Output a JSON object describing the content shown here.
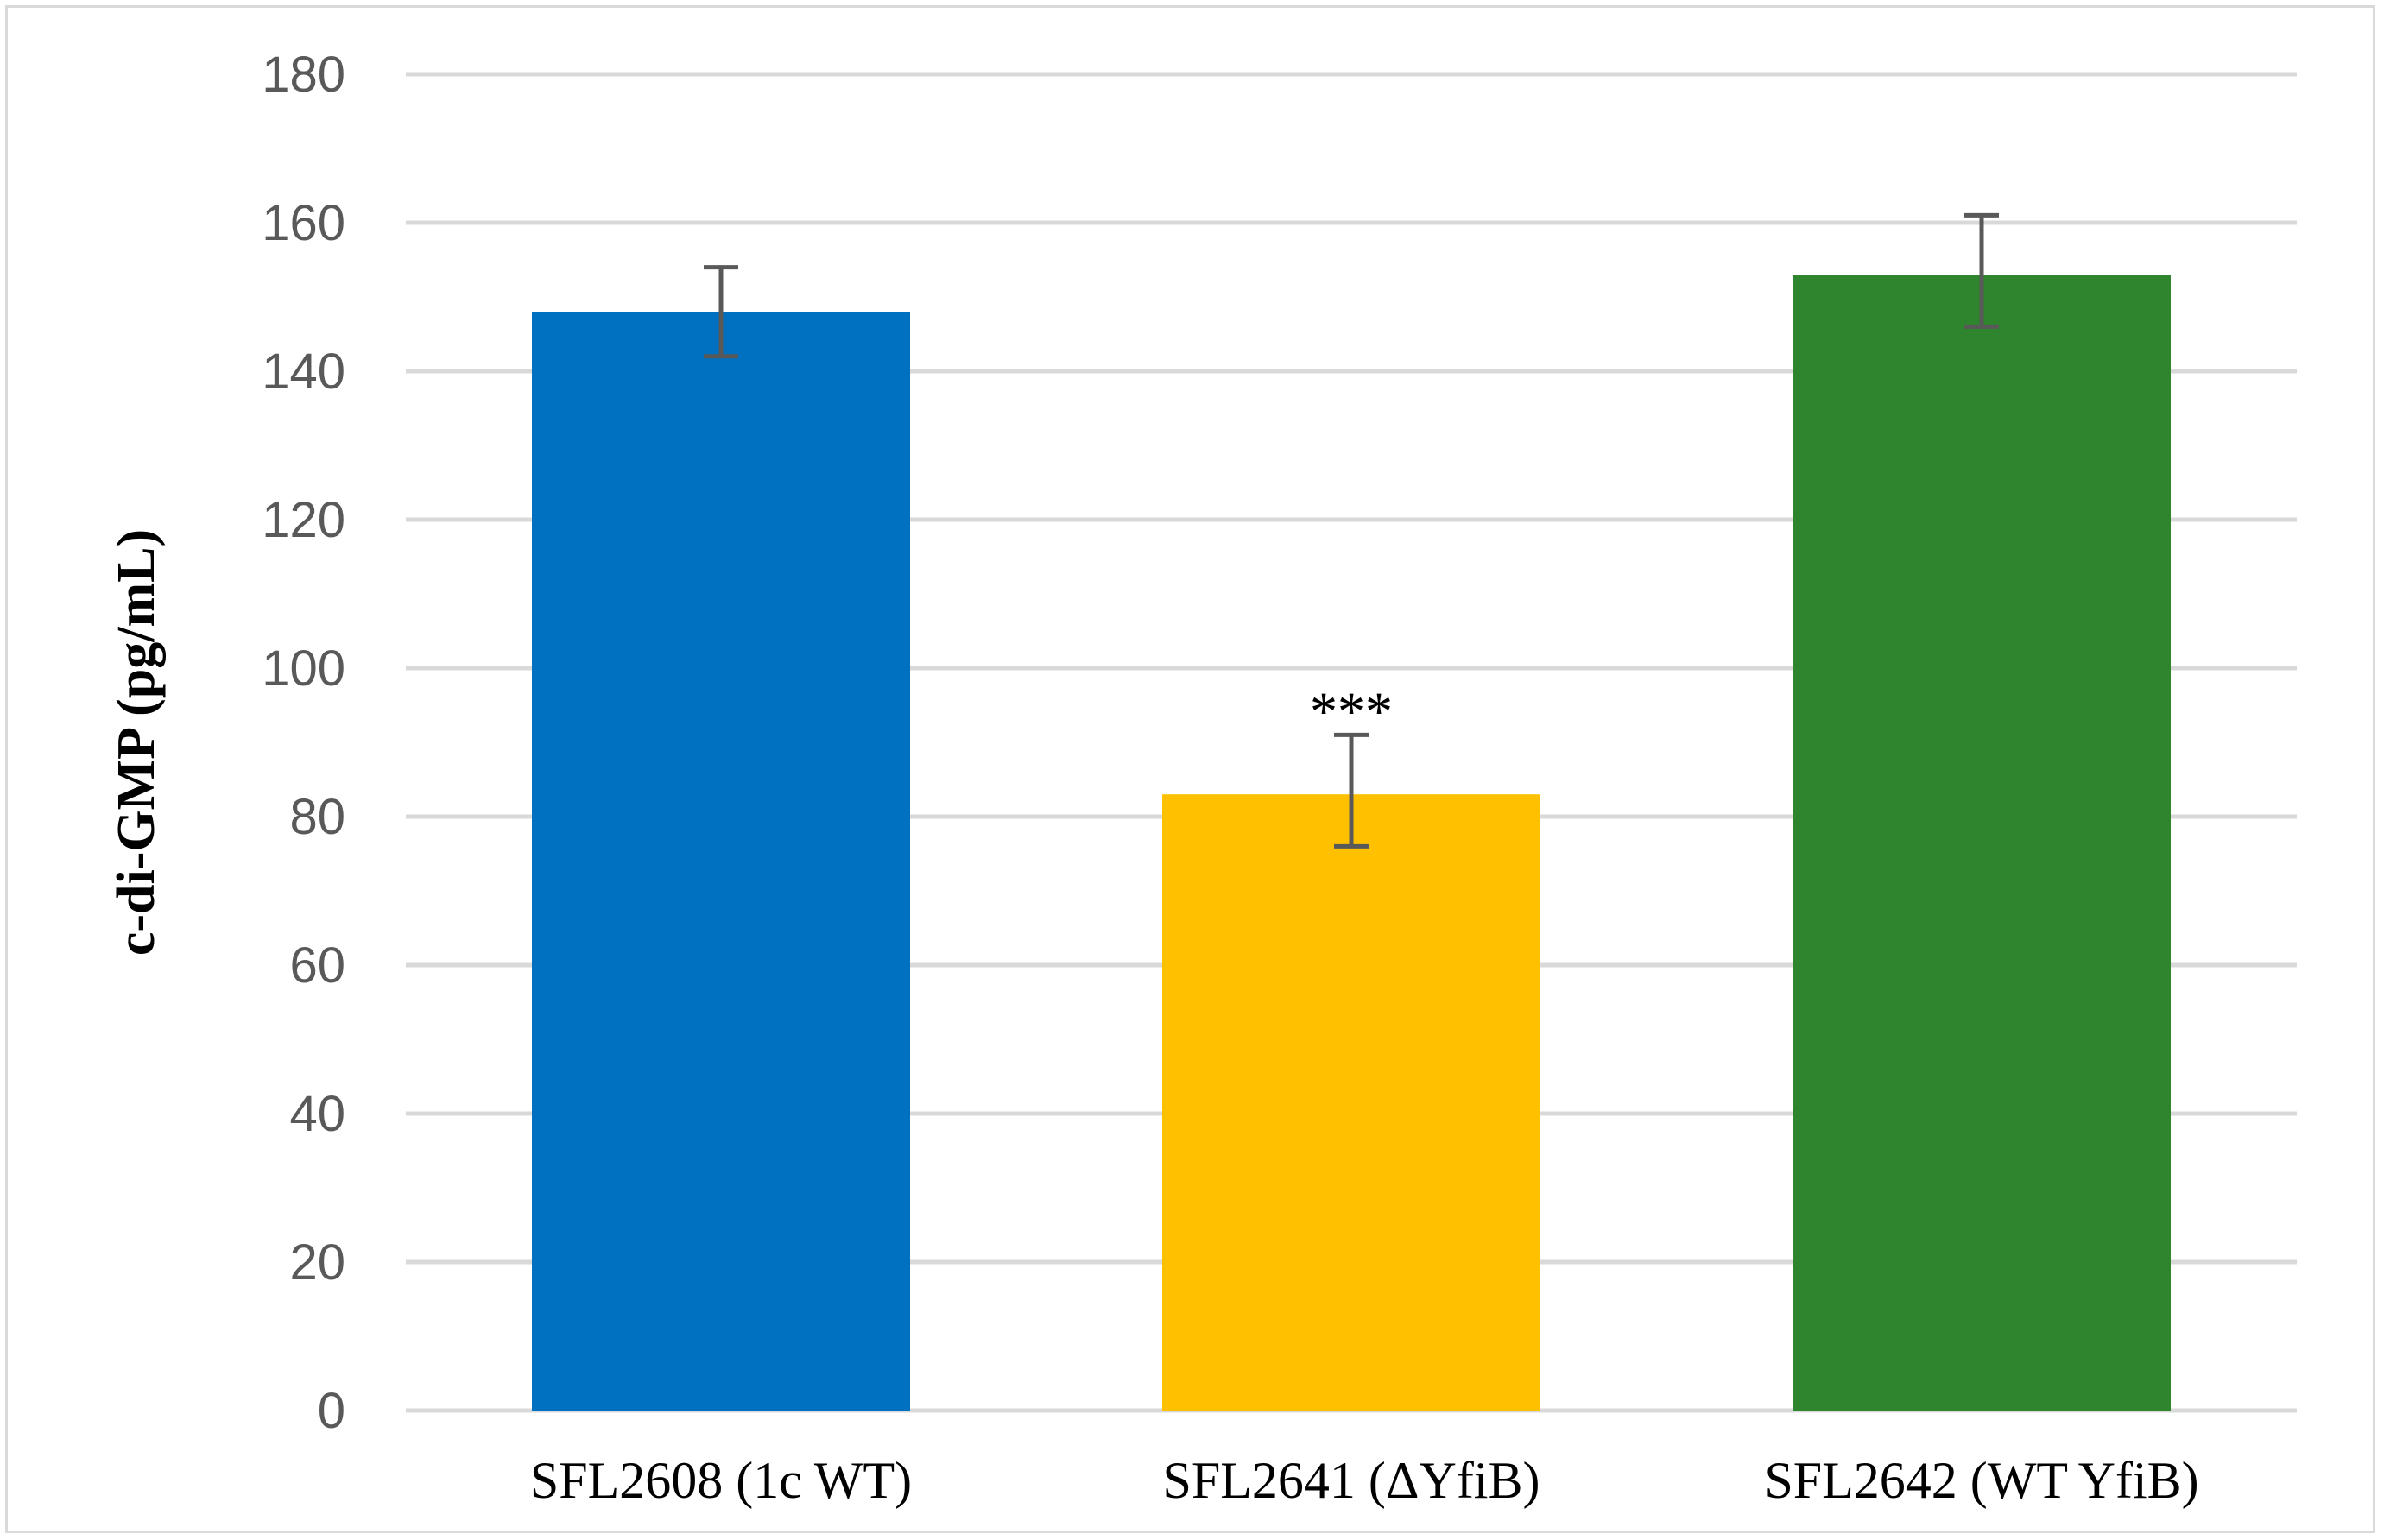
{
  "chart_data": {
    "type": "bar",
    "title": "",
    "xlabel": "",
    "ylabel": "c-di-GMP (pg/mL)",
    "ylim": [
      0,
      180
    ],
    "yticks": [
      0,
      20,
      40,
      60,
      80,
      100,
      120,
      140,
      160,
      180
    ],
    "grid": true,
    "categories": [
      "SFL2608 (1c WT)",
      "SFL2641 (ΔYfiB)",
      "SFL2642 (WT YfiB)"
    ],
    "values": [
      148,
      83,
      153
    ],
    "error_low": [
      142,
      76,
      146
    ],
    "error_high": [
      154,
      91,
      161
    ],
    "colors": [
      "#0070c0",
      "#ffc000",
      "#2e852e"
    ],
    "annotations": [
      {
        "category_index": 1,
        "text": "***"
      }
    ]
  }
}
